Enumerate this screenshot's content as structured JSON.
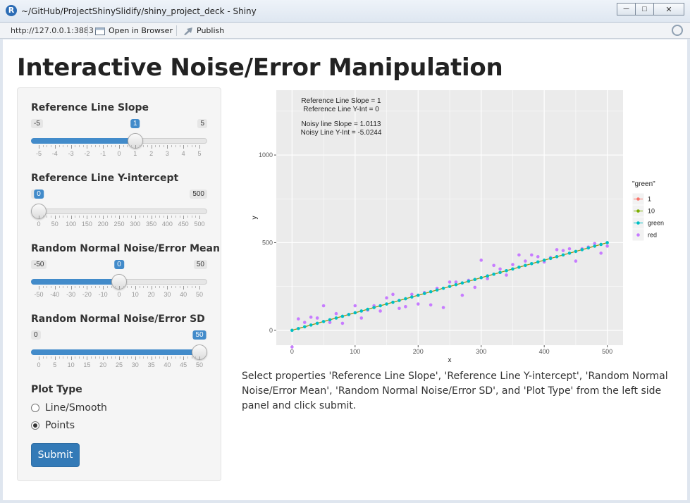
{
  "window": {
    "title": "~/GitHub/ProjectShinySlidify/shiny_project_deck - Shiny",
    "logo_letter": "R",
    "minimize": "─",
    "maximize": "□",
    "close": "✕"
  },
  "toolbar": {
    "url": "http://127.0.0.1:3883",
    "open_in_browser": "Open in Browser",
    "publish": "Publish"
  },
  "page": {
    "title": "Interactive Noise/Error Manipulation",
    "description": "Select properties 'Reference Line Slope', 'Reference Line Y-intercept', 'Random Normal Noise/Error Mean', 'Random Normal Noise/Error SD', and 'Plot Type' from the left side panel and click submit."
  },
  "controls": {
    "slope": {
      "label": "Reference Line Slope",
      "min": -5,
      "max": 5,
      "value": 1,
      "min_label": "-5",
      "max_label": "5",
      "value_label": "1",
      "ticks": [
        "-5",
        "-4",
        "-3",
        "-2",
        "-1",
        "0",
        "1",
        "2",
        "3",
        "4",
        "5"
      ]
    },
    "yint": {
      "label": "Reference Line Y-intercept",
      "min": 0,
      "max": 500,
      "value": 0,
      "min_label": "0",
      "max_label": "500",
      "value_label": "0",
      "ticks": [
        "0",
        "50",
        "100",
        "150",
        "200",
        "250",
        "300",
        "350",
        "400",
        "450",
        "500"
      ]
    },
    "mean": {
      "label": "Random Normal Noise/Error Mean",
      "min": -50,
      "max": 50,
      "value": 0,
      "min_label": "-50",
      "max_label": "50",
      "value_label": "0",
      "ticks": [
        "-50",
        "-40",
        "-30",
        "-20",
        "-10",
        "0",
        "10",
        "20",
        "30",
        "40",
        "50"
      ]
    },
    "sd": {
      "label": "Random Normal Noise/Error SD",
      "min": 0,
      "max": 50,
      "value": 50,
      "min_label": "0",
      "max_label": "50",
      "value_label": "50",
      "ticks": [
        "0",
        "5",
        "10",
        "15",
        "20",
        "25",
        "30",
        "35",
        "40",
        "45",
        "50"
      ]
    },
    "plot_type": {
      "label": "Plot Type",
      "options": [
        "Line/Smooth",
        "Points"
      ],
      "selected": "Points"
    },
    "submit": "Submit"
  },
  "chart_data": {
    "type": "scatter",
    "xlabel": "x",
    "ylabel": "y",
    "xlim": [
      -25,
      525
    ],
    "ylim": [
      -85,
      1370
    ],
    "xticks": [
      0,
      100,
      200,
      300,
      400,
      500
    ],
    "yticks": [
      0,
      500,
      1000
    ],
    "background": "#ebebeb",
    "grid": true,
    "legend": {
      "title": "\"green\"",
      "position": "right",
      "entries": [
        {
          "label": "1",
          "color": "#f8766d",
          "line": true
        },
        {
          "label": "10",
          "color": "#7cae00",
          "line": true
        },
        {
          "label": "green",
          "color": "#00bfc4",
          "line": true
        },
        {
          "label": "red",
          "color": "#c77cff",
          "line": false
        }
      ]
    },
    "annotations": [
      "Reference Line Slope =  1",
      "Reference Line Y-Int =  0",
      "Noisy line Slope =  1.0113",
      "Noisy Line Y-Int =  -5.0244"
    ],
    "reference_line": {
      "slope": 1,
      "intercept": 0,
      "x_from": 0,
      "x_to": 500
    },
    "noisy_line": {
      "slope": 1.0113,
      "intercept": -5.0244
    },
    "series": [
      {
        "name": "green",
        "color": "#00bfc4",
        "x": [
          0,
          10,
          20,
          30,
          40,
          50,
          60,
          70,
          80,
          90,
          100,
          110,
          120,
          130,
          140,
          150,
          160,
          170,
          180,
          190,
          200,
          210,
          220,
          230,
          240,
          250,
          260,
          270,
          280,
          290,
          300,
          310,
          320,
          330,
          340,
          350,
          360,
          370,
          380,
          390,
          400,
          410,
          420,
          430,
          440,
          450,
          460,
          470,
          480,
          490,
          500
        ],
        "y": [
          0,
          10,
          20,
          30,
          40,
          50,
          60,
          70,
          80,
          90,
          100,
          110,
          120,
          130,
          140,
          150,
          160,
          170,
          180,
          190,
          200,
          210,
          220,
          230,
          240,
          250,
          260,
          270,
          280,
          290,
          300,
          310,
          320,
          330,
          340,
          350,
          360,
          370,
          380,
          390,
          400,
          410,
          420,
          430,
          440,
          450,
          460,
          470,
          480,
          490,
          500
        ]
      },
      {
        "name": "red",
        "color": "#c77cff",
        "x": [
          0,
          10,
          20,
          30,
          40,
          50,
          60,
          70,
          80,
          90,
          100,
          110,
          120,
          130,
          140,
          150,
          160,
          170,
          180,
          190,
          200,
          210,
          220,
          230,
          240,
          250,
          260,
          270,
          280,
          290,
          300,
          310,
          320,
          330,
          340,
          350,
          360,
          370,
          380,
          390,
          400,
          410,
          420,
          430,
          440,
          450,
          460,
          470,
          480,
          490,
          500
        ],
        "y": [
          -95,
          65,
          45,
          75,
          70,
          140,
          45,
          95,
          40,
          90,
          140,
          70,
          115,
          140,
          110,
          185,
          205,
          125,
          135,
          205,
          150,
          215,
          145,
          240,
          130,
          275,
          275,
          200,
          285,
          245,
          400,
          295,
          370,
          350,
          315,
          375,
          430,
          395,
          430,
          420,
          390,
          415,
          460,
          455,
          465,
          395,
          465,
          475,
          495,
          440,
          480
        ]
      }
    ]
  }
}
